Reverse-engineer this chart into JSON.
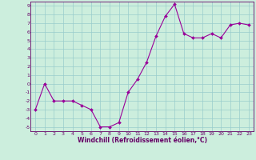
{
  "x": [
    0,
    1,
    2,
    3,
    4,
    5,
    6,
    7,
    8,
    9,
    10,
    11,
    12,
    13,
    14,
    15,
    16,
    17,
    18,
    19,
    20,
    21,
    22,
    23
  ],
  "y": [
    -3,
    0,
    -2,
    -2,
    -2,
    -2.5,
    -3,
    -5,
    -5,
    -4.5,
    -1,
    0.5,
    2.5,
    5.5,
    7.8,
    9.2,
    5.8,
    5.3,
    5.3,
    5.8,
    5.3,
    6.8,
    7.0,
    6.8
  ],
  "xlim": [
    -0.5,
    23.5
  ],
  "ylim": [
    -5.5,
    9.5
  ],
  "yticks": [
    -5,
    -4,
    -3,
    -2,
    -1,
    0,
    1,
    2,
    3,
    4,
    5,
    6,
    7,
    8,
    9
  ],
  "xticks": [
    0,
    1,
    2,
    3,
    4,
    5,
    6,
    7,
    8,
    9,
    10,
    11,
    12,
    13,
    14,
    15,
    16,
    17,
    18,
    19,
    20,
    21,
    22,
    23
  ],
  "xlabel": "Windchill (Refroidissement éolien,°C)",
  "line_color": "#990099",
  "marker_color": "#990099",
  "bg_color": "#cceedd",
  "grid_color": "#99cccc",
  "axis_color": "#660066",
  "tick_color": "#660066",
  "xlabel_color": "#660066"
}
